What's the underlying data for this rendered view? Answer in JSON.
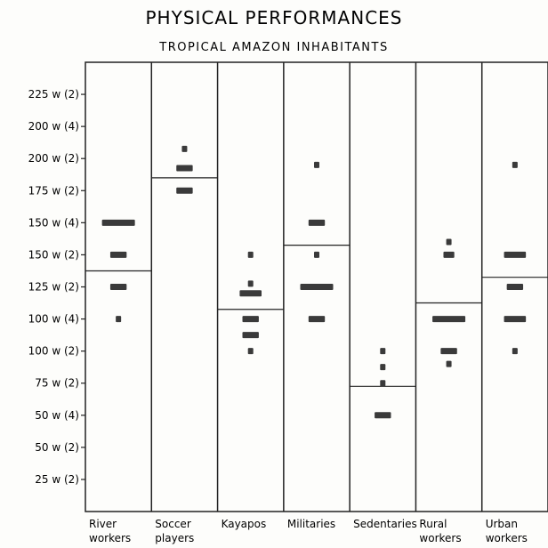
{
  "chart_data": {
    "type": "scatter",
    "title": "PHYSICAL PERFORMANCES",
    "subtitle": "TROPICAL AMAZON INHABITANTS",
    "y_tick_labels": [
      "225 w (2)",
      "200 w (4)",
      "200 w (2)",
      "175 w (2)",
      "150 w (4)",
      "150 w (2)",
      "125 w (2)",
      "100 w (4)",
      "100 w (2)",
      "75 w (2)",
      "50 w (4)",
      "50 w (2)",
      "25 w (2)"
    ],
    "ylim": [
      0,
      14
    ],
    "categories": [
      [
        "River",
        "workers"
      ],
      [
        "Soccer",
        "players"
      ],
      [
        "Kayapos"
      ],
      [
        "Militaries"
      ],
      [
        "Sedentaries"
      ],
      [
        "Rural",
        "workers"
      ],
      [
        "Urban",
        "workers"
      ]
    ],
    "groups": [
      {
        "mean": 7.5,
        "points": [
          {
            "level": 9.0,
            "count": 6
          },
          {
            "level": 8.0,
            "count": 3
          },
          {
            "level": 7.0,
            "count": 3
          },
          {
            "level": 6.0,
            "count": 1
          }
        ]
      },
      {
        "mean": 10.4,
        "points": [
          {
            "level": 11.3,
            "count": 1
          },
          {
            "level": 10.7,
            "count": 3
          },
          {
            "level": 10.0,
            "count": 3
          }
        ]
      },
      {
        "mean": 6.3,
        "points": [
          {
            "level": 8.0,
            "count": 1
          },
          {
            "level": 7.1,
            "count": 1
          },
          {
            "level": 6.8,
            "count": 4
          },
          {
            "level": 6.0,
            "count": 3
          },
          {
            "level": 5.5,
            "count": 3
          },
          {
            "level": 5.0,
            "count": 1
          }
        ]
      },
      {
        "mean": 8.3,
        "points": [
          {
            "level": 10.8,
            "count": 1
          },
          {
            "level": 9.0,
            "count": 3
          },
          {
            "level": 8.0,
            "count": 1
          },
          {
            "level": 7.0,
            "count": 6
          },
          {
            "level": 6.0,
            "count": 3
          }
        ]
      },
      {
        "mean": 3.9,
        "points": [
          {
            "level": 5.0,
            "count": 1
          },
          {
            "level": 4.5,
            "count": 1
          },
          {
            "level": 4.0,
            "count": 1
          },
          {
            "level": 3.0,
            "count": 3
          }
        ]
      },
      {
        "mean": 6.5,
        "points": [
          {
            "level": 8.4,
            "count": 1
          },
          {
            "level": 8.0,
            "count": 2
          },
          {
            "level": 6.0,
            "count": 6
          },
          {
            "level": 5.0,
            "count": 3
          },
          {
            "level": 4.6,
            "count": 1
          }
        ]
      },
      {
        "mean": 7.3,
        "points": [
          {
            "level": 10.8,
            "count": 1
          },
          {
            "level": 8.0,
            "count": 4
          },
          {
            "level": 7.0,
            "count": 3
          },
          {
            "level": 6.0,
            "count": 4
          },
          {
            "level": 5.0,
            "count": 1
          }
        ]
      }
    ],
    "grid": false,
    "legend": "none"
  }
}
